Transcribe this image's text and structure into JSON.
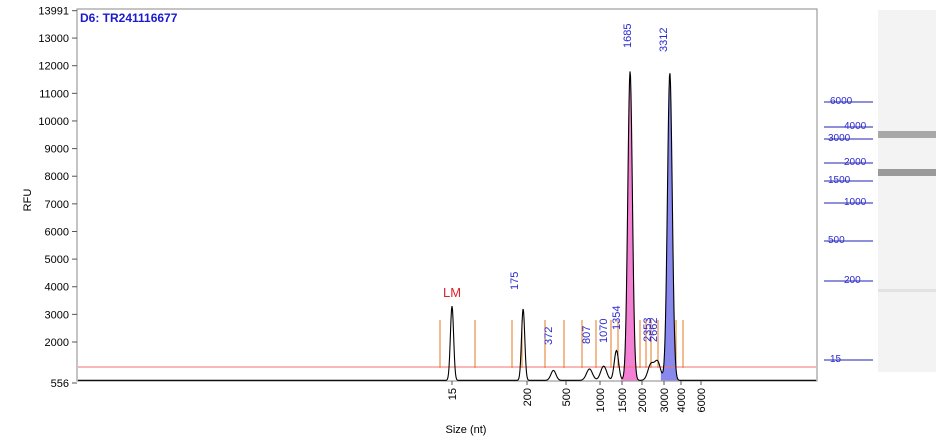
{
  "chart_data": {
    "type": "line",
    "sample_title": "D6: TR241116677",
    "ylabel": "RFU",
    "xlabel": "Size (nt)",
    "ylim": [
      556,
      13991
    ],
    "y_ticks": [
      "556",
      "2000",
      "3000",
      "4000",
      "5000",
      "6000",
      "7000",
      "8000",
      "9000",
      "10000",
      "11000",
      "12000",
      "13000",
      "13991"
    ],
    "x_ticks": [
      "15",
      "200",
      "500",
      "1000",
      "1500",
      "2000",
      "3000",
      "4000",
      "6000"
    ],
    "marker_label": "LM",
    "peaks": [
      {
        "size_label": "175",
        "rfu": 3200
      },
      {
        "size_label": "372",
        "rfu": 1000
      },
      {
        "size_label": "807",
        "rfu": 1050
      },
      {
        "size_label": "1070",
        "rfu": 1150
      },
      {
        "size_label": "1354",
        "rfu": 1700
      },
      {
        "size_label": "1685",
        "rfu": 11800,
        "fill": "#f060c8"
      },
      {
        "size_label": "2353",
        "rfu": 1200
      },
      {
        "size_label": "2662",
        "rfu": 1300
      },
      {
        "size_label": "3312",
        "rfu": 11750,
        "fill": "#6a6ae8"
      }
    ],
    "lower_marker": {
      "size_label": "15",
      "rfu": 3300
    },
    "gel_ladder": [
      "6000",
      "4000",
      "3000",
      "2000",
      "1500",
      "1000",
      "500",
      "200",
      "15"
    ]
  }
}
